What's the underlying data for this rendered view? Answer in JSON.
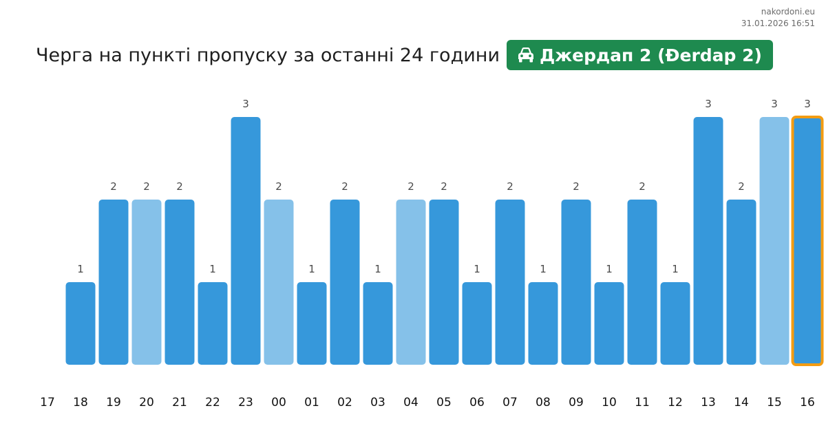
{
  "site": {
    "name": "nakordoni.eu",
    "timestamp": "31.01.2026 16:51"
  },
  "header": {
    "title": "Черга на пункті пропуску за останні 24 години",
    "badge_label": "Джердап 2 (Đerdap 2)",
    "badge_icon": "car-icon",
    "badge_color": "#1e8a4f"
  },
  "colors": {
    "bar": "#3698db",
    "bar_light": "#85c1e9",
    "highlight_outline": "#f39c12"
  },
  "chart_data": {
    "type": "bar",
    "title": "Черга на пункті пропуску за останні 24 години",
    "xlabel": "",
    "ylabel": "",
    "categories": [
      "17",
      "18",
      "19",
      "20",
      "21",
      "22",
      "23",
      "00",
      "01",
      "02",
      "03",
      "04",
      "05",
      "06",
      "07",
      "08",
      "09",
      "10",
      "11",
      "12",
      "13",
      "14",
      "15",
      "16"
    ],
    "values": [
      0,
      1,
      2,
      2,
      2,
      1,
      3,
      2,
      1,
      2,
      1,
      2,
      2,
      1,
      2,
      1,
      2,
      1,
      2,
      1,
      3,
      2,
      3,
      3
    ],
    "light": [
      false,
      false,
      false,
      true,
      false,
      false,
      false,
      true,
      false,
      false,
      false,
      true,
      false,
      false,
      false,
      false,
      false,
      false,
      false,
      false,
      false,
      false,
      true,
      false
    ],
    "highlighted_category": "16",
    "ylim": [
      0,
      3
    ],
    "grid": false,
    "data_labels": true
  }
}
